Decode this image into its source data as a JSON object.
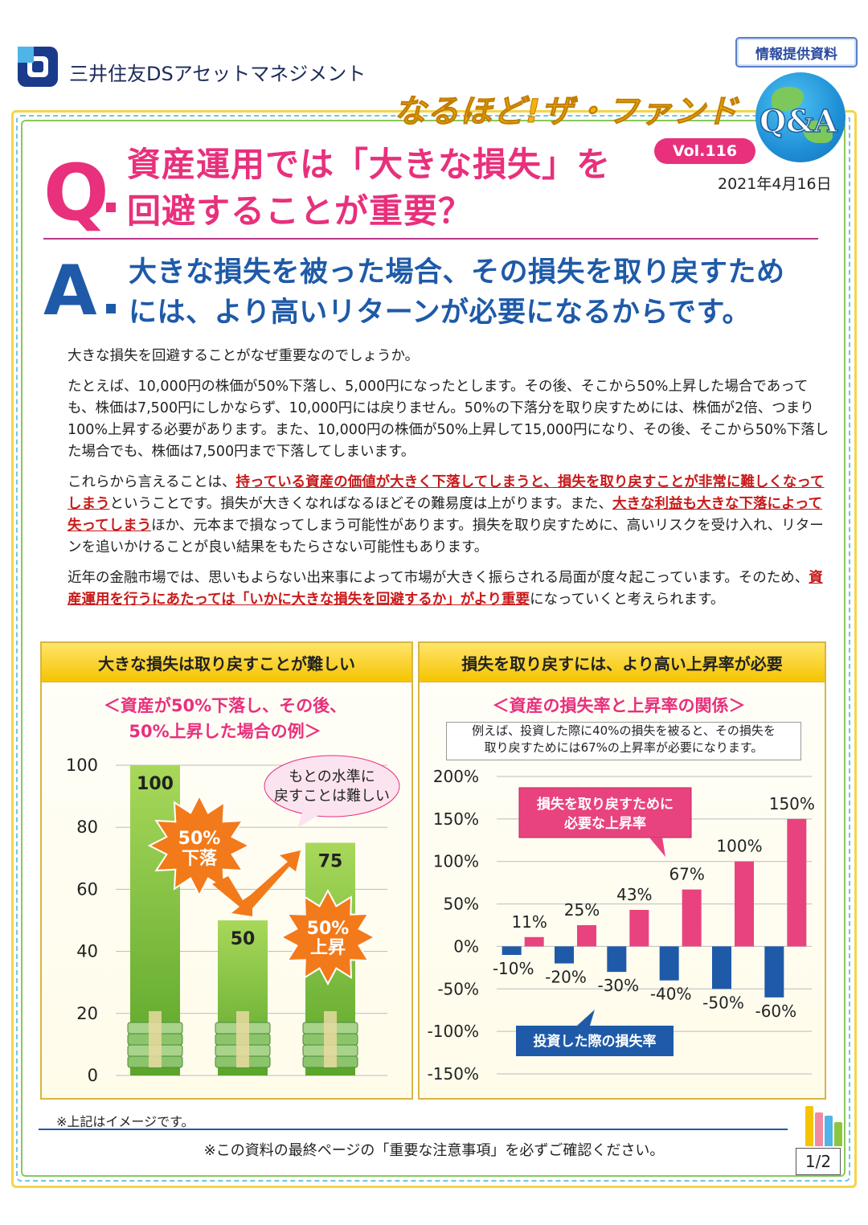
{
  "header": {
    "company": "三井住友DSアセットマネジメント",
    "badge": "情報提供資料",
    "series_title": "なるほど!ザ・ファンド",
    "series_qa": "Q&A",
    "volume": "Vol.116",
    "date": "2021年4月16日"
  },
  "question": {
    "letter": "Q",
    "line1": "資産運用では「大きな損失」を",
    "line2": "回避することが重要？"
  },
  "answer": {
    "letter": "A",
    "line1": "大きな損失を被った場合、その損失を取り戻すため",
    "line2": "には、より高いリターンが必要になるからです。"
  },
  "body": {
    "p1": "大きな損失を回避することがなぜ重要なのでしょうか。",
    "p2": "たとえば、10,000円の株価が50%下落し、5,000円になったとします。その後、そこから50%上昇した場合であっても、株価は7,500円にしかならず、10,000円には戻りません。50%の下落分を取り戻すためには、株価が2倍、つまり100%上昇する必要があります。また、10,000円の株価が50%上昇して15,000円になり、その後、そこから50%下落した場合でも、株価は7,500円まで下落してしまいます。",
    "p3_a": "これらから言えることは、",
    "p3_em1": "持っている資産の価値が大きく下落してしまうと、損失を取り戻すことが非常に難しくなってしまう",
    "p3_b": "ということです。損失が大きくなればなるほどその難易度は上がります。また、",
    "p3_em2": "大きな利益も大きな下落によって失ってしまう",
    "p3_c": "ほか、元本まで損なってしまう可能性があります。損失を取り戻すために、高いリスクを受け入れ、リターンを追いかけることが良い結果をもたらさない可能性もあります。",
    "p4_a": "近年の金融市場では、思いもよらない出来事によって市場が大きく振らされる局面が度々起こっています。そのため、",
    "p4_em": "資産運用を行うにあたっては「いかに大きな損失を回避するか」がより重要",
    "p4_b": "になっていくと考えられます。"
  },
  "left_panel": {
    "title": "大きな損失は取り戻すことが難しい",
    "subtitle1": "＜資産が50%下落し、その後、",
    "subtitle2": "50%上昇した場合の例＞",
    "bubble1": "もとの水準に",
    "bubble2": "戻すことは難しい",
    "burst_down1": "50%",
    "burst_down2": "下落",
    "burst_up1": "50%",
    "burst_up2": "上昇"
  },
  "right_panel": {
    "title": "損失を取り戻すには、より高い上昇率が必要",
    "subtitle": "＜資産の損失率と上昇率の関係＞",
    "note1": "例えば、投資した際に40%の損失を被ると、その損失を",
    "note2": "取り戻すためには67%の上昇率が必要になります。",
    "pink_label1": "損失を取り戻すために",
    "pink_label2": "必要な上昇率",
    "blue_label": "投資した際の損失率"
  },
  "chart_data": [
    {
      "type": "bar",
      "categories": [
        "",
        "",
        ""
      ],
      "values": [
        100,
        50,
        75
      ],
      "value_labels": [
        "100",
        "50",
        "75"
      ],
      "ylim": [
        0,
        100
      ],
      "yticks": [
        "0",
        "20",
        "40",
        "60",
        "80",
        "100"
      ],
      "colors": {
        "bar": "#8cc63f"
      }
    },
    {
      "type": "bar",
      "categories": [
        "-10%",
        "-20%",
        "-30%",
        "-40%",
        "-50%",
        "-60%"
      ],
      "series": [
        {
          "values": [
            -10,
            -20,
            -30,
            -40,
            -50,
            -60
          ],
          "color": "#1e5aa8"
        },
        {
          "values": [
            11,
            25,
            43,
            67,
            100,
            150
          ],
          "color": "#e8437f"
        }
      ],
      "value_labels": [
        "11%",
        "25%",
        "43%",
        "67%",
        "100%",
        "150%"
      ],
      "ylim": [
        -150,
        200
      ],
      "yticks": [
        "-150%",
        "-100%",
        "-50%",
        "0%",
        "50%",
        "100%",
        "150%",
        "200%"
      ]
    }
  ],
  "footer": {
    "image_note": "※上記はイメージです。",
    "notice": "※この資料の最終ページの「重要な注意事項」を必ずご確認ください。",
    "page": "1/2"
  }
}
